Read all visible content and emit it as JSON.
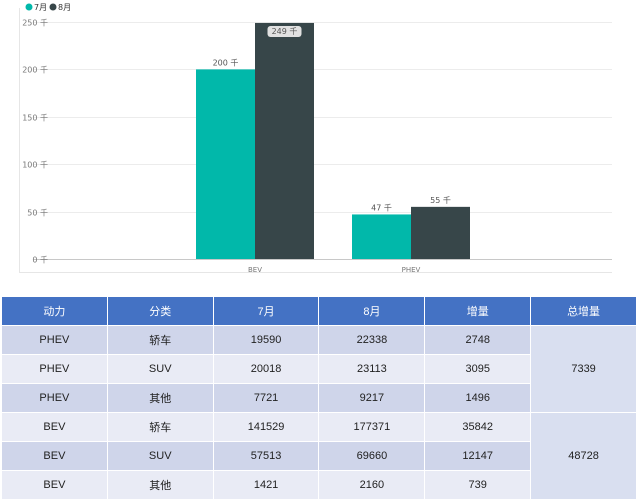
{
  "chart_data": {
    "type": "bar",
    "categories": [
      "BEV",
      "PHEV"
    ],
    "series": [
      {
        "name": "7月",
        "values": [
          200,
          47
        ],
        "labels": [
          "200 千",
          "47 千"
        ],
        "color": "#01b8aa"
      },
      {
        "name": "8月",
        "values": [
          249,
          55
        ],
        "labels": [
          "249 千",
          "55 千"
        ],
        "color": "#374649"
      }
    ],
    "ylim": [
      0,
      250
    ],
    "yticks": [
      0,
      50,
      100,
      150,
      200,
      250
    ],
    "ytick_labels": [
      "0 千",
      "50 千",
      "100 千",
      "150 千",
      "200 千",
      "250 千"
    ],
    "legend_position": "top-left",
    "grid": true
  },
  "table": {
    "headers": [
      "动力",
      "分类",
      "7月",
      "8月",
      "增量",
      "总增量"
    ],
    "rows": [
      [
        "PHEV",
        "轿车",
        "19590",
        "22338",
        "2748"
      ],
      [
        "PHEV",
        "SUV",
        "20018",
        "23113",
        "3095"
      ],
      [
        "PHEV",
        "其他",
        "7721",
        "9217",
        "1496"
      ],
      [
        "BEV",
        "轿车",
        "141529",
        "177371",
        "35842"
      ],
      [
        "BEV",
        "SUV",
        "57513",
        "69660",
        "12147"
      ],
      [
        "BEV",
        "其他",
        "1421",
        "2160",
        "739"
      ]
    ],
    "totals": [
      "7339",
      "48728"
    ]
  }
}
